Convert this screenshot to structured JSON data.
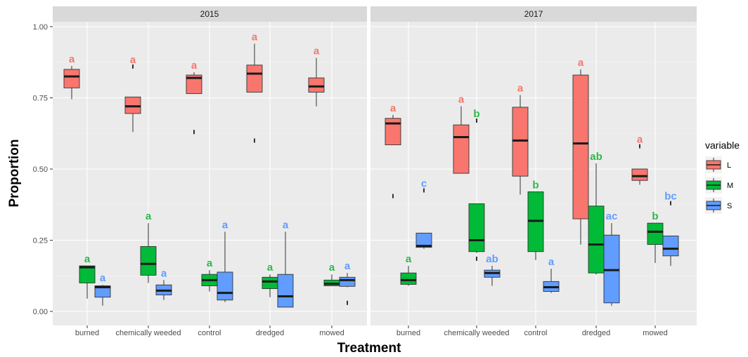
{
  "chart_data": {
    "type": "boxplot",
    "xlabel": "Treatment",
    "ylabel": "Proportion",
    "ylim": [
      0,
      1
    ],
    "yticks": [
      "0.00",
      "0.25",
      "0.50",
      "0.75",
      "1.00"
    ],
    "ytick_values": [
      0,
      0.25,
      0.5,
      0.75,
      1.0
    ],
    "grid": true,
    "legend": {
      "title": "variable",
      "placement": "right",
      "entries": [
        {
          "key": "L",
          "label": "L",
          "color": "#F8766D"
        },
        {
          "key": "M",
          "label": "M",
          "color": "#00BA38"
        },
        {
          "key": "S",
          "label": "S",
          "color": "#619CFF"
        }
      ]
    },
    "letter_colors": {
      "L": "#F8766D",
      "M": "#2DB74A",
      "S": "#619CFF"
    },
    "categories": [
      "burned",
      "chemically weeded",
      "control",
      "dredged",
      "mowed"
    ],
    "panels": [
      {
        "title": "2015",
        "groups": [
          {
            "category": "burned",
            "boxes": [
              {
                "variable": "L",
                "min": 0.745,
                "q1": 0.785,
                "median": 0.825,
                "q3": 0.85,
                "max": 0.862,
                "outliers": [],
                "letter": "a"
              },
              {
                "variable": "M",
                "min": 0.045,
                "q1": 0.1,
                "median": 0.155,
                "q3": 0.16,
                "max": 0.16,
                "outliers": [],
                "letter": "a"
              },
              {
                "variable": "S",
                "min": 0.02,
                "q1": 0.05,
                "median": 0.085,
                "q3": 0.09,
                "max": 0.093,
                "outliers": [],
                "letter": "a"
              }
            ]
          },
          {
            "category": "chemically weeded",
            "boxes": [
              {
                "variable": "L",
                "min": 0.63,
                "q1": 0.695,
                "median": 0.72,
                "q3": 0.753,
                "max": 0.753,
                "outliers": [
                  0.86
                ],
                "letter": "a"
              },
              {
                "variable": "M",
                "min": 0.1,
                "q1": 0.127,
                "median": 0.167,
                "q3": 0.228,
                "max": 0.31,
                "outliers": [],
                "letter": "a"
              },
              {
                "variable": "S",
                "min": 0.04,
                "q1": 0.058,
                "median": 0.073,
                "q3": 0.093,
                "max": 0.11,
                "outliers": [],
                "letter": "a"
              }
            ]
          },
          {
            "category": "control",
            "boxes": [
              {
                "variable": "L",
                "min": 0.765,
                "q1": 0.765,
                "median": 0.82,
                "q3": 0.83,
                "max": 0.84,
                "outliers": [
                  0.63
                ],
                "letter": "a"
              },
              {
                "variable": "M",
                "min": 0.07,
                "q1": 0.09,
                "median": 0.11,
                "q3": 0.13,
                "max": 0.145,
                "outliers": [],
                "letter": "a"
              },
              {
                "variable": "S",
                "min": 0.033,
                "q1": 0.04,
                "median": 0.065,
                "q3": 0.138,
                "max": 0.28,
                "outliers": [],
                "letter": "a"
              }
            ]
          },
          {
            "category": "dredged",
            "boxes": [
              {
                "variable": "L",
                "min": 0.77,
                "q1": 0.77,
                "median": 0.835,
                "q3": 0.865,
                "max": 0.94,
                "outliers": [
                  0.6
                ],
                "letter": "a"
              },
              {
                "variable": "M",
                "min": 0.05,
                "q1": 0.08,
                "median": 0.105,
                "q3": 0.12,
                "max": 0.13,
                "outliers": [],
                "letter": "a"
              },
              {
                "variable": "S",
                "min": 0.015,
                "q1": 0.015,
                "median": 0.053,
                "q3": 0.13,
                "max": 0.28,
                "outliers": [],
                "letter": "a"
              }
            ]
          },
          {
            "category": "mowed",
            "boxes": [
              {
                "variable": "L",
                "min": 0.72,
                "q1": 0.77,
                "median": 0.79,
                "q3": 0.82,
                "max": 0.89,
                "outliers": [],
                "letter": "a"
              },
              {
                "variable": "M",
                "min": 0.09,
                "q1": 0.09,
                "median": 0.097,
                "q3": 0.11,
                "max": 0.13,
                "outliers": [],
                "letter": "a"
              },
              {
                "variable": "S",
                "min": 0.085,
                "q1": 0.088,
                "median": 0.11,
                "q3": 0.12,
                "max": 0.135,
                "outliers": [
                  0.03
                ],
                "letter": "a"
              }
            ]
          }
        ]
      },
      {
        "title": "2017",
        "groups": [
          {
            "category": "burned",
            "boxes": [
              {
                "variable": "L",
                "min": 0.585,
                "q1": 0.585,
                "median": 0.66,
                "q3": 0.678,
                "max": 0.69,
                "outliers": [
                  0.405
                ],
                "letter": "a"
              },
              {
                "variable": "M",
                "min": 0.09,
                "q1": 0.095,
                "median": 0.11,
                "q3": 0.135,
                "max": 0.16,
                "outliers": [],
                "letter": "a"
              },
              {
                "variable": "S",
                "min": 0.22,
                "q1": 0.225,
                "median": 0.23,
                "q3": 0.275,
                "max": 0.275,
                "outliers": [
                  0.425
                ],
                "letter": "c"
              }
            ]
          },
          {
            "category": "chemically weeded",
            "boxes": [
              {
                "variable": "L",
                "min": 0.485,
                "q1": 0.485,
                "median": 0.612,
                "q3": 0.655,
                "max": 0.72,
                "outliers": [],
                "letter": "a"
              },
              {
                "variable": "M",
                "min": 0.205,
                "q1": 0.21,
                "median": 0.25,
                "q3": 0.378,
                "max": 0.378,
                "outliers": [
                  0.185,
                  0.67
                ],
                "letter": "b"
              },
              {
                "variable": "S",
                "min": 0.09,
                "q1": 0.12,
                "median": 0.135,
                "q3": 0.145,
                "max": 0.16,
                "outliers": [],
                "letter": "ab"
              }
            ]
          },
          {
            "category": "control",
            "boxes": [
              {
                "variable": "L",
                "min": 0.41,
                "q1": 0.475,
                "median": 0.6,
                "q3": 0.717,
                "max": 0.76,
                "outliers": [],
                "letter": "a"
              },
              {
                "variable": "M",
                "min": 0.18,
                "q1": 0.21,
                "median": 0.318,
                "q3": 0.42,
                "max": 0.42,
                "outliers": [],
                "letter": "b"
              },
              {
                "variable": "S",
                "min": 0.065,
                "q1": 0.07,
                "median": 0.085,
                "q3": 0.105,
                "max": 0.15,
                "outliers": [],
                "letter": "a"
              }
            ]
          },
          {
            "category": "dredged",
            "boxes": [
              {
                "variable": "L",
                "min": 0.235,
                "q1": 0.325,
                "median": 0.59,
                "q3": 0.83,
                "max": 0.85,
                "outliers": [],
                "letter": "a"
              },
              {
                "variable": "M",
                "min": 0.13,
                "q1": 0.135,
                "median": 0.235,
                "q3": 0.37,
                "max": 0.52,
                "outliers": [],
                "letter": "ab"
              },
              {
                "variable": "S",
                "min": 0.02,
                "q1": 0.03,
                "median": 0.145,
                "q3": 0.268,
                "max": 0.31,
                "outliers": [],
                "letter": "ac"
              }
            ]
          },
          {
            "category": "mowed",
            "boxes": [
              {
                "variable": "L",
                "min": 0.445,
                "q1": 0.46,
                "median": 0.475,
                "q3": 0.5,
                "max": 0.5,
                "outliers": [
                  0.58
                ],
                "letter": "a"
              },
              {
                "variable": "M",
                "min": 0.17,
                "q1": 0.235,
                "median": 0.28,
                "q3": 0.31,
                "max": 0.31,
                "outliers": [],
                "letter": "b"
              },
              {
                "variable": "S",
                "min": 0.16,
                "q1": 0.195,
                "median": 0.22,
                "q3": 0.265,
                "max": 0.265,
                "outliers": [
                  0.38
                ],
                "letter": "bc"
              }
            ]
          }
        ]
      }
    ]
  }
}
